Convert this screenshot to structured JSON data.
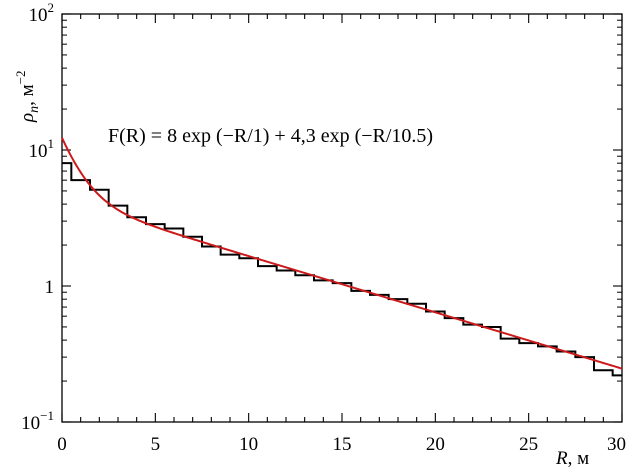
{
  "chart_data": {
    "type": "line",
    "x_axis": {
      "label_var": "R",
      "label_unit": ", м",
      "range": [
        0,
        30
      ],
      "ticks": [
        0,
        5,
        10,
        15,
        20,
        25,
        30
      ],
      "tick_labels": [
        "0",
        "5",
        "10",
        "15",
        "20",
        "25",
        "30"
      ]
    },
    "y_axis": {
      "label_var": "ρ",
      "label_sub": "n",
      "label_unit": ", м",
      "label_unit_exp": "−2",
      "scale": "log",
      "range": [
        0.1,
        100
      ],
      "ticks": [
        {
          "value": 0.1,
          "base": "10",
          "exp": "−1"
        },
        {
          "value": 1,
          "base": "1",
          "exp": ""
        },
        {
          "value": 10,
          "base": "10",
          "exp": "1"
        },
        {
          "value": 100,
          "base": "10",
          "exp": "2"
        }
      ]
    },
    "annotation": "F(R) = 8 exp (−R/1) + 4,3 exp (−R/10.5)",
    "series": [
      {
        "type": "step",
        "color": "#000000",
        "bin_edges": [
          0,
          0.5,
          1.5,
          2.5,
          3.5,
          4.5,
          5.5,
          6.5,
          7.5,
          8.5,
          9.5,
          10.5,
          11.5,
          12.5,
          13.5,
          14.5,
          15.5,
          16.5,
          17.5,
          18.5,
          19.5,
          20.5,
          21.5,
          22.5,
          23.5,
          24.5,
          25.5,
          26.5,
          27.5,
          28.5,
          29.5,
          30
        ],
        "values": [
          8.0,
          6.0,
          5.1,
          3.9,
          3.2,
          2.85,
          2.65,
          2.3,
          1.95,
          1.7,
          1.6,
          1.4,
          1.3,
          1.2,
          1.1,
          1.05,
          0.92,
          0.86,
          0.8,
          0.74,
          0.65,
          0.58,
          0.52,
          0.5,
          0.41,
          0.38,
          0.36,
          0.33,
          0.3,
          0.24,
          0.22
        ]
      },
      {
        "type": "function",
        "color": "#cc1a1a",
        "formula_terms": [
          {
            "amplitude": 8,
            "scale": 1
          },
          {
            "amplitude": 4.3,
            "scale": 10.5
          }
        ]
      }
    ]
  }
}
